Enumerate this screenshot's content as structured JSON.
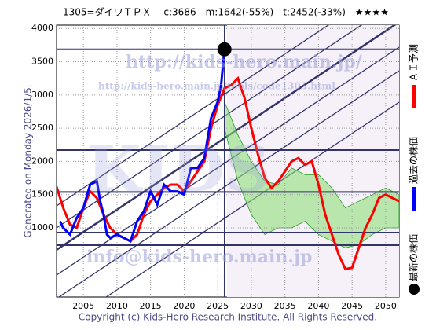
{
  "chart_data": {
    "type": "line",
    "title": "1305=ダイワＴＰＸ　 c:3686　m:1642(-55%)　t:2452(-33%)　★★★★",
    "subtitle": "Generated on Monday 2026/1/5.",
    "xlim": [
      2001,
      2052
    ],
    "ylim": [
      -40,
      4050
    ],
    "xticks": [
      2005,
      2010,
      2015,
      2020,
      2025,
      2030,
      2035,
      2040,
      2045,
      2050
    ],
    "yticks": [
      1000,
      1500,
      2000,
      2500,
      3000,
      3500,
      4000
    ],
    "grid": true,
    "series": [
      {
        "name": "過去の株価",
        "color": "#0000ff",
        "x": [
          2001.5,
          2002,
          2003,
          2004,
          2005,
          2006,
          2007,
          2007.5,
          2008,
          2008.5,
          2009,
          2010,
          2011,
          2012,
          2013,
          2014,
          2015,
          2016,
          2017,
          2018,
          2019,
          2020,
          2021,
          2022,
          2023,
          2024,
          2025,
          2025.5,
          2026
        ],
        "values": [
          1100,
          1000,
          900,
          1150,
          1300,
          1650,
          1700,
          1400,
          1200,
          900,
          850,
          900,
          850,
          800,
          1100,
          1250,
          1550,
          1350,
          1650,
          1550,
          1550,
          1500,
          1900,
          1900,
          2050,
          2650,
          2900,
          3150,
          3686
        ]
      },
      {
        "name": "ＡＩ予測",
        "color": "#ff0000",
        "x": [
          2001,
          2002,
          2003,
          2004,
          2005,
          2006,
          2007,
          2008,
          2009,
          2010,
          2011,
          2012,
          2013,
          2014,
          2015,
          2016,
          2017,
          2018,
          2019,
          2020,
          2021,
          2022,
          2023,
          2024,
          2025,
          2026,
          2027,
          2028,
          2029,
          2030,
          2031,
          2032,
          2033,
          2034,
          2035,
          2036,
          2037,
          2038,
          2039,
          2040,
          2041,
          2042,
          2043,
          2044,
          2045,
          2046,
          2047,
          2048,
          2049,
          2050,
          2051,
          2052
        ],
        "values": [
          1620,
          1300,
          1050,
          1000,
          1300,
          1550,
          1450,
          1200,
          1000,
          900,
          850,
          800,
          900,
          1200,
          1400,
          1500,
          1600,
          1650,
          1650,
          1550,
          1700,
          1850,
          2000,
          2500,
          2850,
          3100,
          3150,
          3250,
          2950,
          2500,
          2100,
          1750,
          1600,
          1700,
          1850,
          2000,
          2050,
          1950,
          2000,
          1650,
          1200,
          900,
          600,
          380,
          400,
          700,
          1000,
          1200,
          1450,
          1500,
          1450,
          1400
        ]
      }
    ],
    "band": {
      "color": "#8fe07a",
      "x": [
        2026,
        2028,
        2030,
        2032,
        2034,
        2036,
        2038,
        2040,
        2042,
        2044,
        2046,
        2048,
        2050,
        2052
      ],
      "upper": [
        2900,
        2400,
        2000,
        1700,
        1650,
        1900,
        1800,
        1800,
        1600,
        1300,
        1400,
        1500,
        1600,
        1500
      ],
      "lower": [
        2500,
        1700,
        1200,
        900,
        1000,
        1000,
        1100,
        900,
        800,
        700,
        750,
        900,
        1000,
        1000
      ]
    },
    "levels": [
      3686,
      2170,
      1540,
      930,
      740
    ],
    "latest": {
      "name": "最新の株価",
      "x": 2026,
      "value": 3686
    }
  },
  "watermarks": [
    "http://kids-hero.main.jp/",
    "http://kids-hero.main.jp/tools/code1305.html",
    "KIDS",
    "info@kids-hero.main.jp"
  ],
  "copyright": "Copyright (c) Kids-Hero Research Institute. All Rights Reserved."
}
